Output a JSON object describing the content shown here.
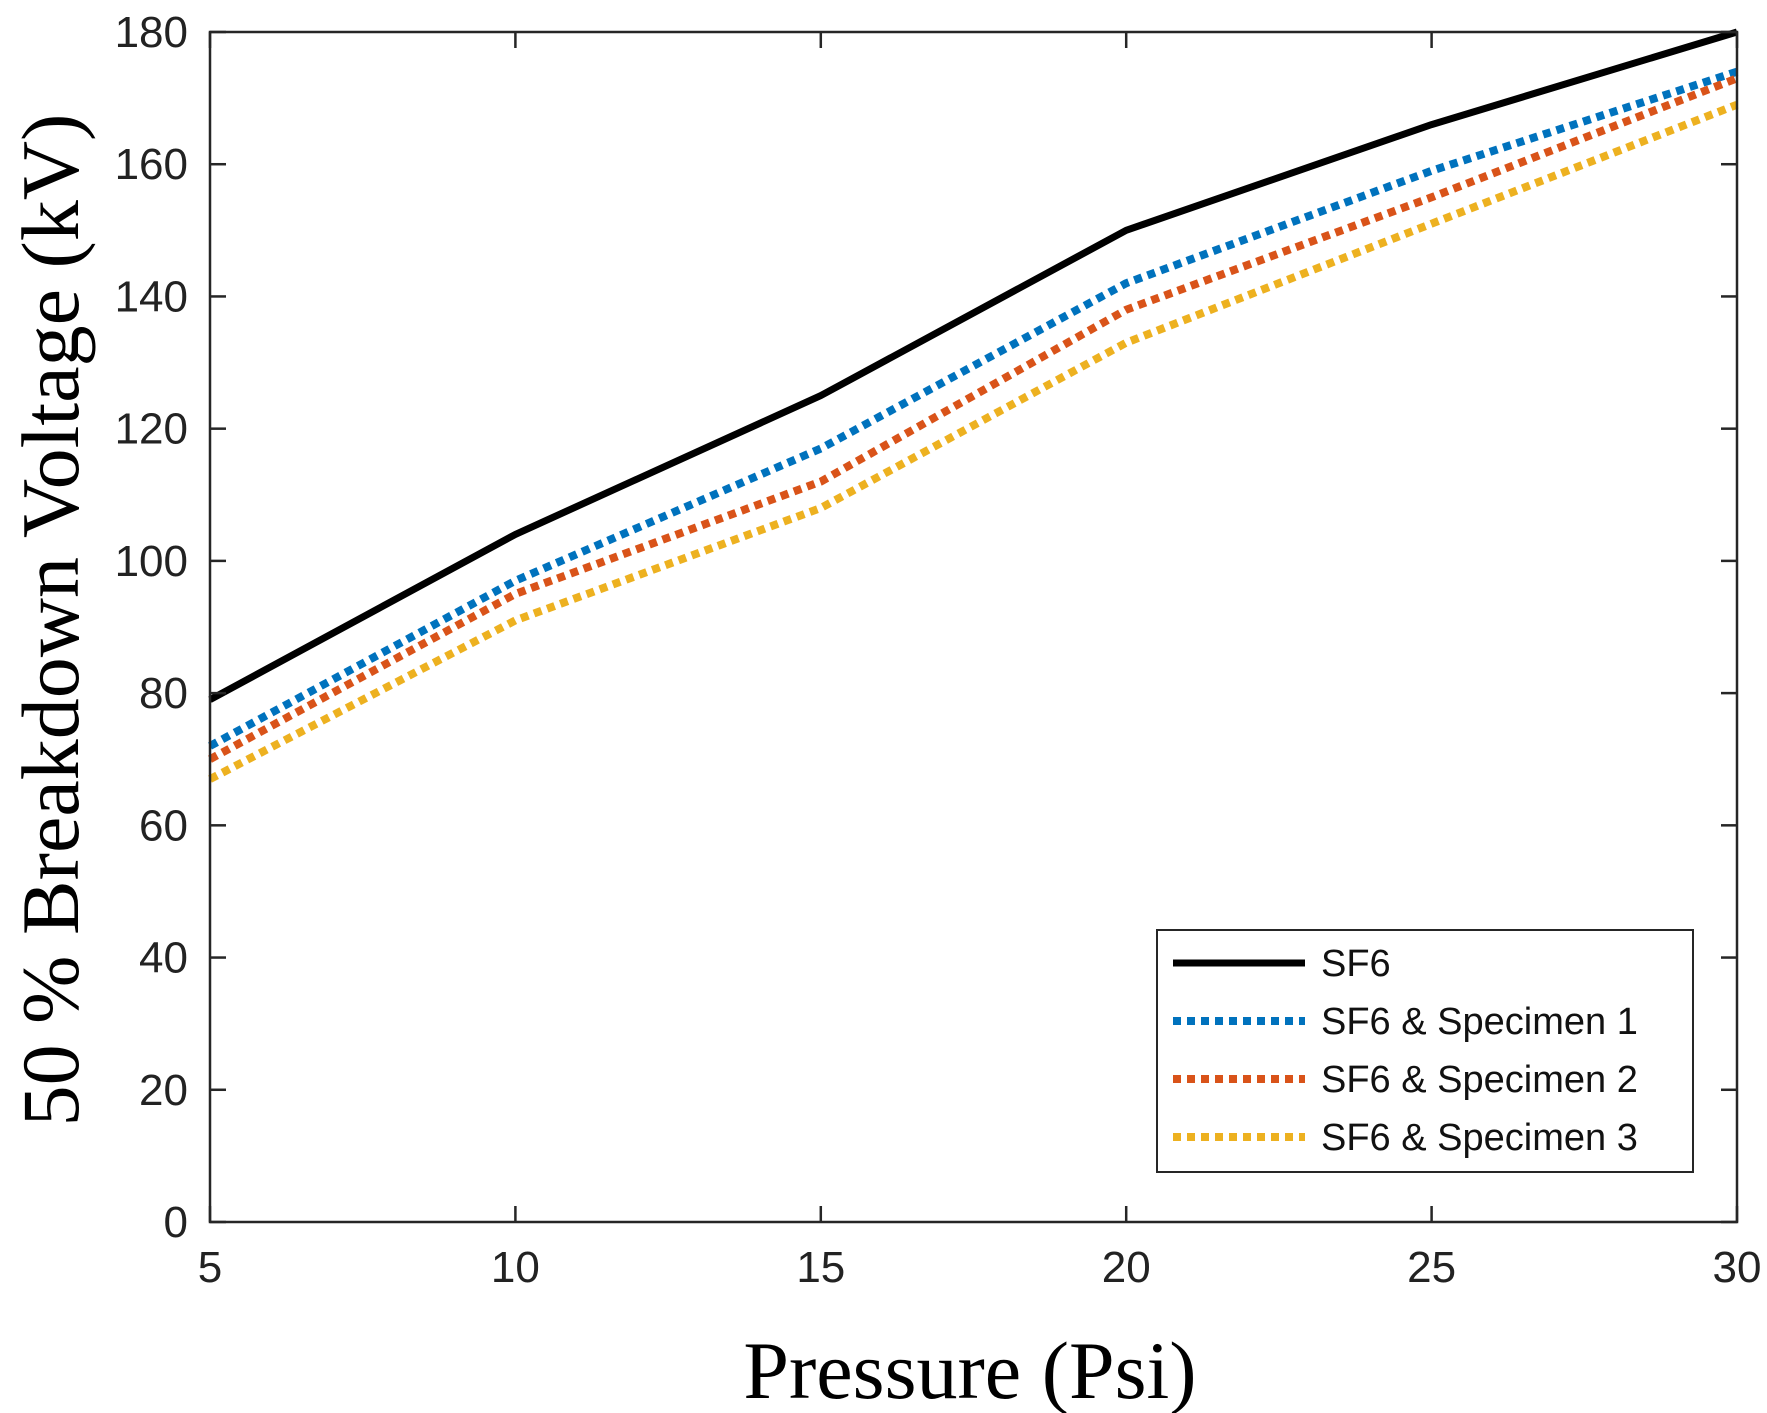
{
  "chart_data": {
    "type": "line",
    "title": "",
    "xlabel": "Pressure (Psi)",
    "ylabel": "50 % Breakdown Voltage (kV)",
    "xlim": [
      5,
      30
    ],
    "ylim": [
      0,
      180
    ],
    "xticks": [
      5,
      10,
      15,
      20,
      25,
      30
    ],
    "yticks": [
      0,
      20,
      40,
      60,
      80,
      100,
      120,
      140,
      160,
      180
    ],
    "grid": false,
    "legend_position": "bottom-right",
    "series": [
      {
        "name": "SF6",
        "color": "#000000",
        "style": "solid",
        "x": [
          5,
          10,
          15,
          20,
          25,
          30
        ],
        "y": [
          79,
          104,
          125,
          150,
          166,
          180
        ]
      },
      {
        "name": "SF6 & Specimen 1",
        "color": "#0072BD",
        "style": "dotted",
        "x": [
          5,
          10,
          15,
          20,
          25,
          30
        ],
        "y": [
          72,
          97,
          117,
          142,
          159,
          174
        ]
      },
      {
        "name": "SF6 & Specimen 2",
        "color": "#D95319",
        "style": "dotted",
        "x": [
          5,
          10,
          15,
          20,
          25,
          30
        ],
        "y": [
          70,
          95,
          112,
          138,
          155,
          173
        ]
      },
      {
        "name": "SF6 & Specimen 3",
        "color": "#EDB120",
        "style": "dotted",
        "x": [
          5,
          10,
          15,
          20,
          25,
          30
        ],
        "y": [
          67,
          91,
          108,
          133,
          151,
          169
        ]
      }
    ]
  }
}
